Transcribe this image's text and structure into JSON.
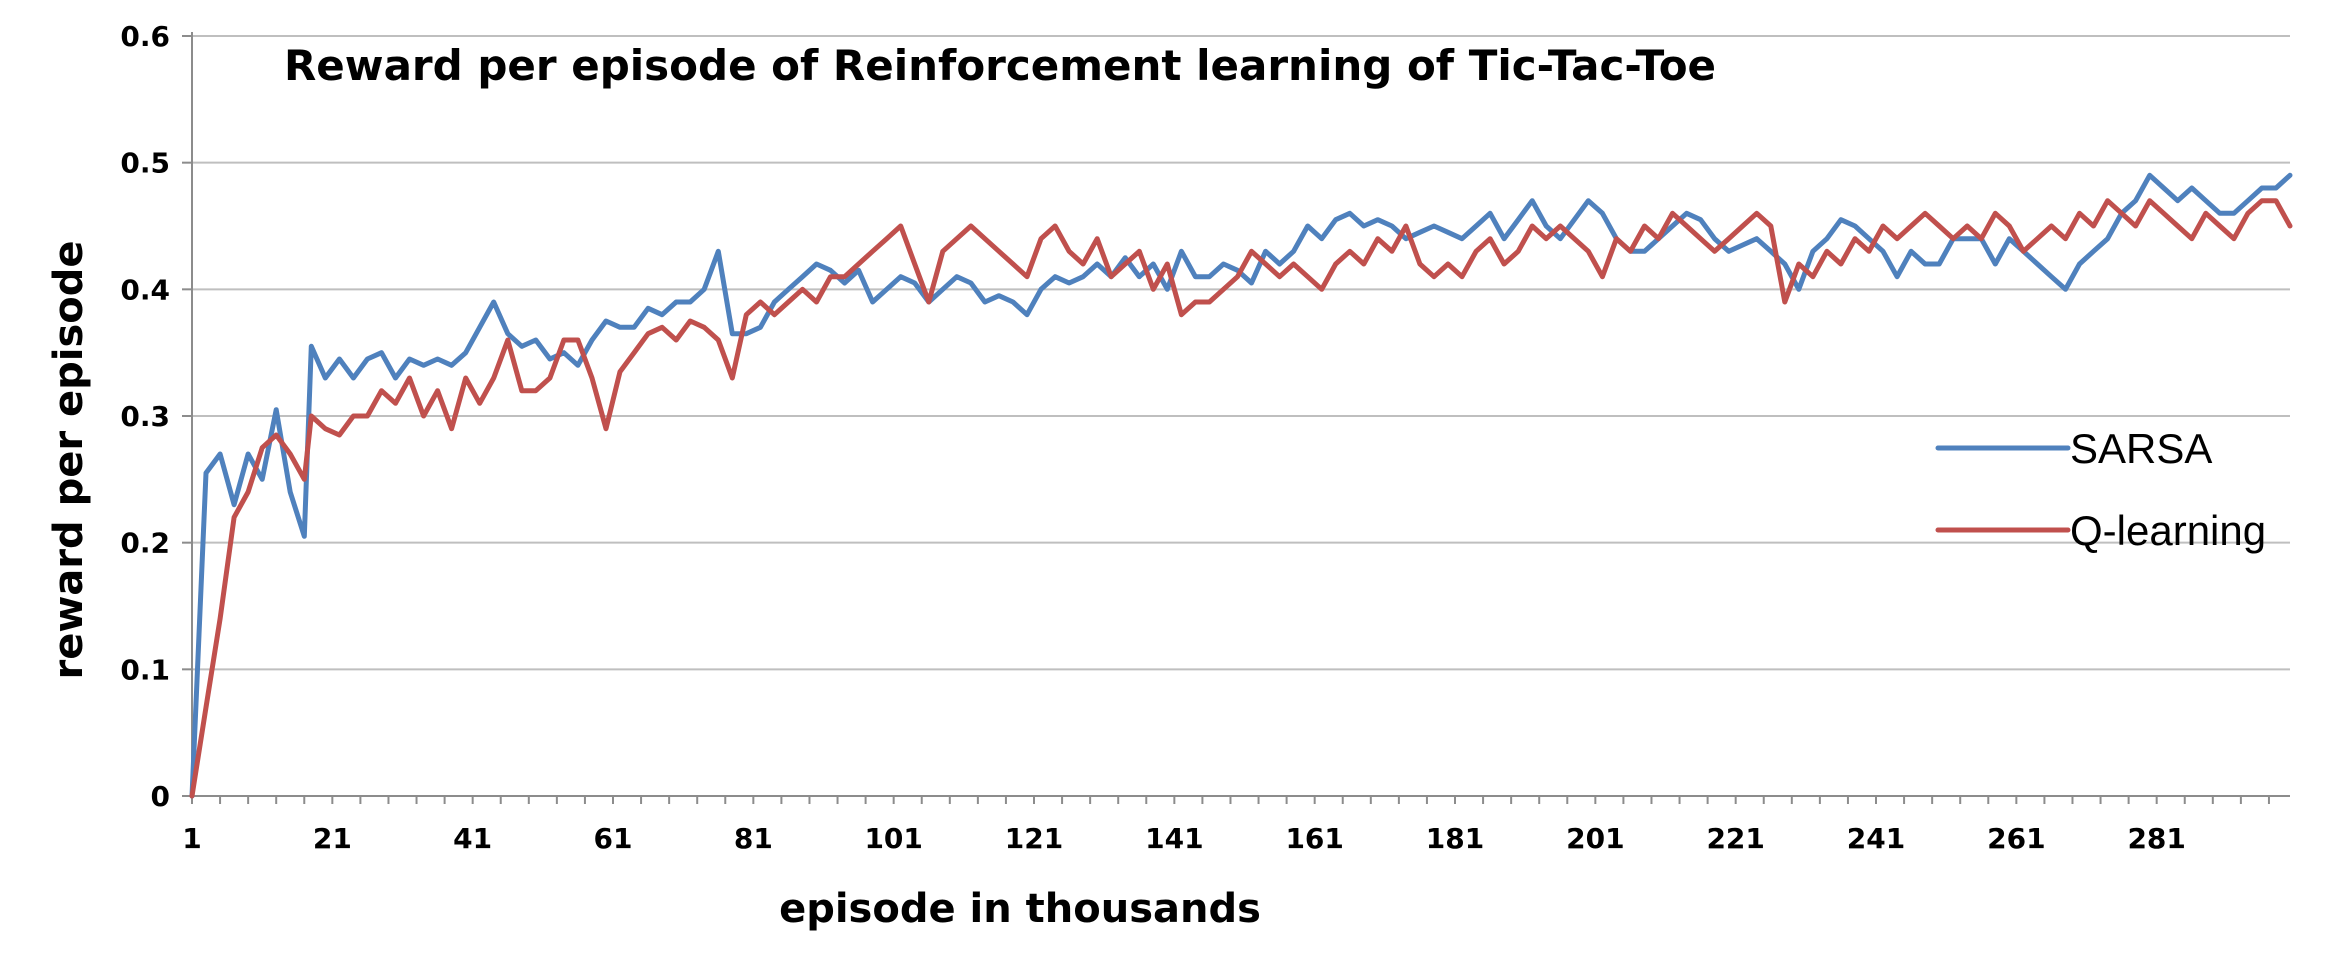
{
  "chart_data": {
    "type": "line",
    "title": "Reward per episode of Reinforcement learning of Tic-Tac-Toe",
    "xlabel": "episode in thousands",
    "ylabel": "reward per episode",
    "ylim": [
      0,
      0.6
    ],
    "y_ticks": [
      "0",
      "0.1",
      "0.2",
      "0.3",
      "0.4",
      "0.5",
      "0.6"
    ],
    "y_tick_values": [
      0,
      0.1,
      0.2,
      0.3,
      0.4,
      0.5,
      0.6
    ],
    "x_ticks": [
      "1",
      "21",
      "41",
      "61",
      "81",
      "101",
      "121",
      "141",
      "161",
      "181",
      "201",
      "221",
      "241",
      "261",
      "281"
    ],
    "x_tick_values": [
      1,
      21,
      41,
      61,
      81,
      101,
      121,
      141,
      161,
      181,
      201,
      221,
      241,
      261,
      281
    ],
    "xlim": [
      1,
      300
    ],
    "grid": true,
    "legend_position": "right",
    "series": [
      {
        "name": "SARSA",
        "color": "#4f81bd",
        "points": [
          [
            1,
            0
          ],
          [
            3,
            0.255
          ],
          [
            5,
            0.27
          ],
          [
            7,
            0.23
          ],
          [
            9,
            0.27
          ],
          [
            11,
            0.25
          ],
          [
            13,
            0.305
          ],
          [
            15,
            0.24
          ],
          [
            17,
            0.205
          ],
          [
            18,
            0.355
          ],
          [
            20,
            0.33
          ],
          [
            22,
            0.345
          ],
          [
            24,
            0.33
          ],
          [
            26,
            0.345
          ],
          [
            28,
            0.35
          ],
          [
            30,
            0.33
          ],
          [
            32,
            0.345
          ],
          [
            34,
            0.34
          ],
          [
            36,
            0.345
          ],
          [
            38,
            0.34
          ],
          [
            40,
            0.35
          ],
          [
            42,
            0.37
          ],
          [
            44,
            0.39
          ],
          [
            46,
            0.365
          ],
          [
            48,
            0.355
          ],
          [
            50,
            0.36
          ],
          [
            52,
            0.345
          ],
          [
            54,
            0.35
          ],
          [
            56,
            0.34
          ],
          [
            58,
            0.36
          ],
          [
            60,
            0.375
          ],
          [
            62,
            0.37
          ],
          [
            64,
            0.37
          ],
          [
            66,
            0.385
          ],
          [
            68,
            0.38
          ],
          [
            70,
            0.39
          ],
          [
            72,
            0.39
          ],
          [
            74,
            0.4
          ],
          [
            76,
            0.43
          ],
          [
            78,
            0.365
          ],
          [
            80,
            0.365
          ],
          [
            82,
            0.37
          ],
          [
            84,
            0.39
          ],
          [
            86,
            0.4
          ],
          [
            88,
            0.41
          ],
          [
            90,
            0.42
          ],
          [
            92,
            0.415
          ],
          [
            94,
            0.405
          ],
          [
            96,
            0.415
          ],
          [
            98,
            0.39
          ],
          [
            100,
            0.4
          ],
          [
            102,
            0.41
          ],
          [
            104,
            0.405
          ],
          [
            106,
            0.39
          ],
          [
            108,
            0.4
          ],
          [
            110,
            0.41
          ],
          [
            112,
            0.405
          ],
          [
            114,
            0.39
          ],
          [
            116,
            0.395
          ],
          [
            118,
            0.39
          ],
          [
            120,
            0.38
          ],
          [
            122,
            0.4
          ],
          [
            124,
            0.41
          ],
          [
            126,
            0.405
          ],
          [
            128,
            0.41
          ],
          [
            130,
            0.42
          ],
          [
            132,
            0.41
          ],
          [
            134,
            0.425
          ],
          [
            136,
            0.41
          ],
          [
            138,
            0.42
          ],
          [
            140,
            0.4
          ],
          [
            142,
            0.43
          ],
          [
            144,
            0.41
          ],
          [
            146,
            0.41
          ],
          [
            148,
            0.42
          ],
          [
            150,
            0.415
          ],
          [
            152,
            0.405
          ],
          [
            154,
            0.43
          ],
          [
            156,
            0.42
          ],
          [
            158,
            0.43
          ],
          [
            160,
            0.45
          ],
          [
            162,
            0.44
          ],
          [
            164,
            0.455
          ],
          [
            166,
            0.46
          ],
          [
            168,
            0.45
          ],
          [
            170,
            0.455
          ],
          [
            172,
            0.45
          ],
          [
            174,
            0.44
          ],
          [
            176,
            0.445
          ],
          [
            178,
            0.45
          ],
          [
            180,
            0.445
          ],
          [
            182,
            0.44
          ],
          [
            184,
            0.45
          ],
          [
            186,
            0.46
          ],
          [
            188,
            0.44
          ],
          [
            190,
            0.455
          ],
          [
            192,
            0.47
          ],
          [
            194,
            0.45
          ],
          [
            196,
            0.44
          ],
          [
            198,
            0.455
          ],
          [
            200,
            0.47
          ],
          [
            202,
            0.46
          ],
          [
            204,
            0.44
          ],
          [
            206,
            0.43
          ],
          [
            208,
            0.43
          ],
          [
            210,
            0.44
          ],
          [
            212,
            0.45
          ],
          [
            214,
            0.46
          ],
          [
            216,
            0.455
          ],
          [
            218,
            0.44
          ],
          [
            220,
            0.43
          ],
          [
            222,
            0.435
          ],
          [
            224,
            0.44
          ],
          [
            226,
            0.43
          ],
          [
            228,
            0.42
          ],
          [
            230,
            0.4
          ],
          [
            232,
            0.43
          ],
          [
            234,
            0.44
          ],
          [
            236,
            0.455
          ],
          [
            238,
            0.45
          ],
          [
            240,
            0.44
          ],
          [
            242,
            0.43
          ],
          [
            244,
            0.41
          ],
          [
            246,
            0.43
          ],
          [
            248,
            0.42
          ],
          [
            250,
            0.42
          ],
          [
            252,
            0.44
          ],
          [
            254,
            0.44
          ],
          [
            256,
            0.44
          ],
          [
            258,
            0.42
          ],
          [
            260,
            0.44
          ],
          [
            262,
            0.43
          ],
          [
            264,
            0.42
          ],
          [
            266,
            0.41
          ],
          [
            268,
            0.4
          ],
          [
            270,
            0.42
          ],
          [
            272,
            0.43
          ],
          [
            274,
            0.44
          ],
          [
            276,
            0.46
          ],
          [
            278,
            0.47
          ],
          [
            280,
            0.49
          ],
          [
            282,
            0.48
          ],
          [
            284,
            0.47
          ],
          [
            286,
            0.48
          ],
          [
            288,
            0.47
          ],
          [
            290,
            0.46
          ],
          [
            292,
            0.46
          ],
          [
            294,
            0.47
          ],
          [
            296,
            0.48
          ],
          [
            298,
            0.48
          ],
          [
            300,
            0.49
          ]
        ]
      },
      {
        "name": "Q-learning",
        "color": "#c0504d",
        "points": [
          [
            1,
            0
          ],
          [
            3,
            0.07
          ],
          [
            5,
            0.14
          ],
          [
            7,
            0.22
          ],
          [
            9,
            0.24
          ],
          [
            11,
            0.275
          ],
          [
            13,
            0.285
          ],
          [
            15,
            0.27
          ],
          [
            17,
            0.25
          ],
          [
            18,
            0.3
          ],
          [
            20,
            0.29
          ],
          [
            22,
            0.285
          ],
          [
            24,
            0.3
          ],
          [
            26,
            0.3
          ],
          [
            28,
            0.32
          ],
          [
            30,
            0.31
          ],
          [
            32,
            0.33
          ],
          [
            34,
            0.3
          ],
          [
            36,
            0.32
          ],
          [
            38,
            0.29
          ],
          [
            40,
            0.33
          ],
          [
            42,
            0.31
          ],
          [
            44,
            0.33
          ],
          [
            46,
            0.36
          ],
          [
            48,
            0.32
          ],
          [
            50,
            0.32
          ],
          [
            52,
            0.33
          ],
          [
            54,
            0.36
          ],
          [
            56,
            0.36
          ],
          [
            58,
            0.33
          ],
          [
            60,
            0.29
          ],
          [
            62,
            0.335
          ],
          [
            64,
            0.35
          ],
          [
            66,
            0.365
          ],
          [
            68,
            0.37
          ],
          [
            70,
            0.36
          ],
          [
            72,
            0.375
          ],
          [
            74,
            0.37
          ],
          [
            76,
            0.36
          ],
          [
            78,
            0.33
          ],
          [
            80,
            0.38
          ],
          [
            82,
            0.39
          ],
          [
            84,
            0.38
          ],
          [
            86,
            0.39
          ],
          [
            88,
            0.4
          ],
          [
            90,
            0.39
          ],
          [
            92,
            0.41
          ],
          [
            94,
            0.41
          ],
          [
            96,
            0.42
          ],
          [
            98,
            0.43
          ],
          [
            100,
            0.44
          ],
          [
            102,
            0.45
          ],
          [
            104,
            0.42
          ],
          [
            106,
            0.39
          ],
          [
            108,
            0.43
          ],
          [
            110,
            0.44
          ],
          [
            112,
            0.45
          ],
          [
            114,
            0.44
          ],
          [
            116,
            0.43
          ],
          [
            118,
            0.42
          ],
          [
            120,
            0.41
          ],
          [
            122,
            0.44
          ],
          [
            124,
            0.45
          ],
          [
            126,
            0.43
          ],
          [
            128,
            0.42
          ],
          [
            130,
            0.44
          ],
          [
            132,
            0.41
          ],
          [
            134,
            0.42
          ],
          [
            136,
            0.43
          ],
          [
            138,
            0.4
          ],
          [
            140,
            0.42
          ],
          [
            142,
            0.38
          ],
          [
            144,
            0.39
          ],
          [
            146,
            0.39
          ],
          [
            148,
            0.4
          ],
          [
            150,
            0.41
          ],
          [
            152,
            0.43
          ],
          [
            154,
            0.42
          ],
          [
            156,
            0.41
          ],
          [
            158,
            0.42
          ],
          [
            160,
            0.41
          ],
          [
            162,
            0.4
          ],
          [
            164,
            0.42
          ],
          [
            166,
            0.43
          ],
          [
            168,
            0.42
          ],
          [
            170,
            0.44
          ],
          [
            172,
            0.43
          ],
          [
            174,
            0.45
          ],
          [
            176,
            0.42
          ],
          [
            178,
            0.41
          ],
          [
            180,
            0.42
          ],
          [
            182,
            0.41
          ],
          [
            184,
            0.43
          ],
          [
            186,
            0.44
          ],
          [
            188,
            0.42
          ],
          [
            190,
            0.43
          ],
          [
            192,
            0.45
          ],
          [
            194,
            0.44
          ],
          [
            196,
            0.45
          ],
          [
            198,
            0.44
          ],
          [
            200,
            0.43
          ],
          [
            202,
            0.41
          ],
          [
            204,
            0.44
          ],
          [
            206,
            0.43
          ],
          [
            208,
            0.45
          ],
          [
            210,
            0.44
          ],
          [
            212,
            0.46
          ],
          [
            214,
            0.45
          ],
          [
            216,
            0.44
          ],
          [
            218,
            0.43
          ],
          [
            220,
            0.44
          ],
          [
            222,
            0.45
          ],
          [
            224,
            0.46
          ],
          [
            226,
            0.45
          ],
          [
            228,
            0.39
          ],
          [
            230,
            0.42
          ],
          [
            232,
            0.41
          ],
          [
            234,
            0.43
          ],
          [
            236,
            0.42
          ],
          [
            238,
            0.44
          ],
          [
            240,
            0.43
          ],
          [
            242,
            0.45
          ],
          [
            244,
            0.44
          ],
          [
            246,
            0.45
          ],
          [
            248,
            0.46
          ],
          [
            250,
            0.45
          ],
          [
            252,
            0.44
          ],
          [
            254,
            0.45
          ],
          [
            256,
            0.44
          ],
          [
            258,
            0.46
          ],
          [
            260,
            0.45
          ],
          [
            262,
            0.43
          ],
          [
            264,
            0.44
          ],
          [
            266,
            0.45
          ],
          [
            268,
            0.44
          ],
          [
            270,
            0.46
          ],
          [
            272,
            0.45
          ],
          [
            274,
            0.47
          ],
          [
            276,
            0.46
          ],
          [
            278,
            0.45
          ],
          [
            280,
            0.47
          ],
          [
            282,
            0.46
          ],
          [
            284,
            0.45
          ],
          [
            286,
            0.44
          ],
          [
            288,
            0.46
          ],
          [
            290,
            0.45
          ],
          [
            292,
            0.44
          ],
          [
            294,
            0.46
          ],
          [
            296,
            0.47
          ],
          [
            298,
            0.47
          ],
          [
            300,
            0.45
          ]
        ]
      }
    ]
  }
}
